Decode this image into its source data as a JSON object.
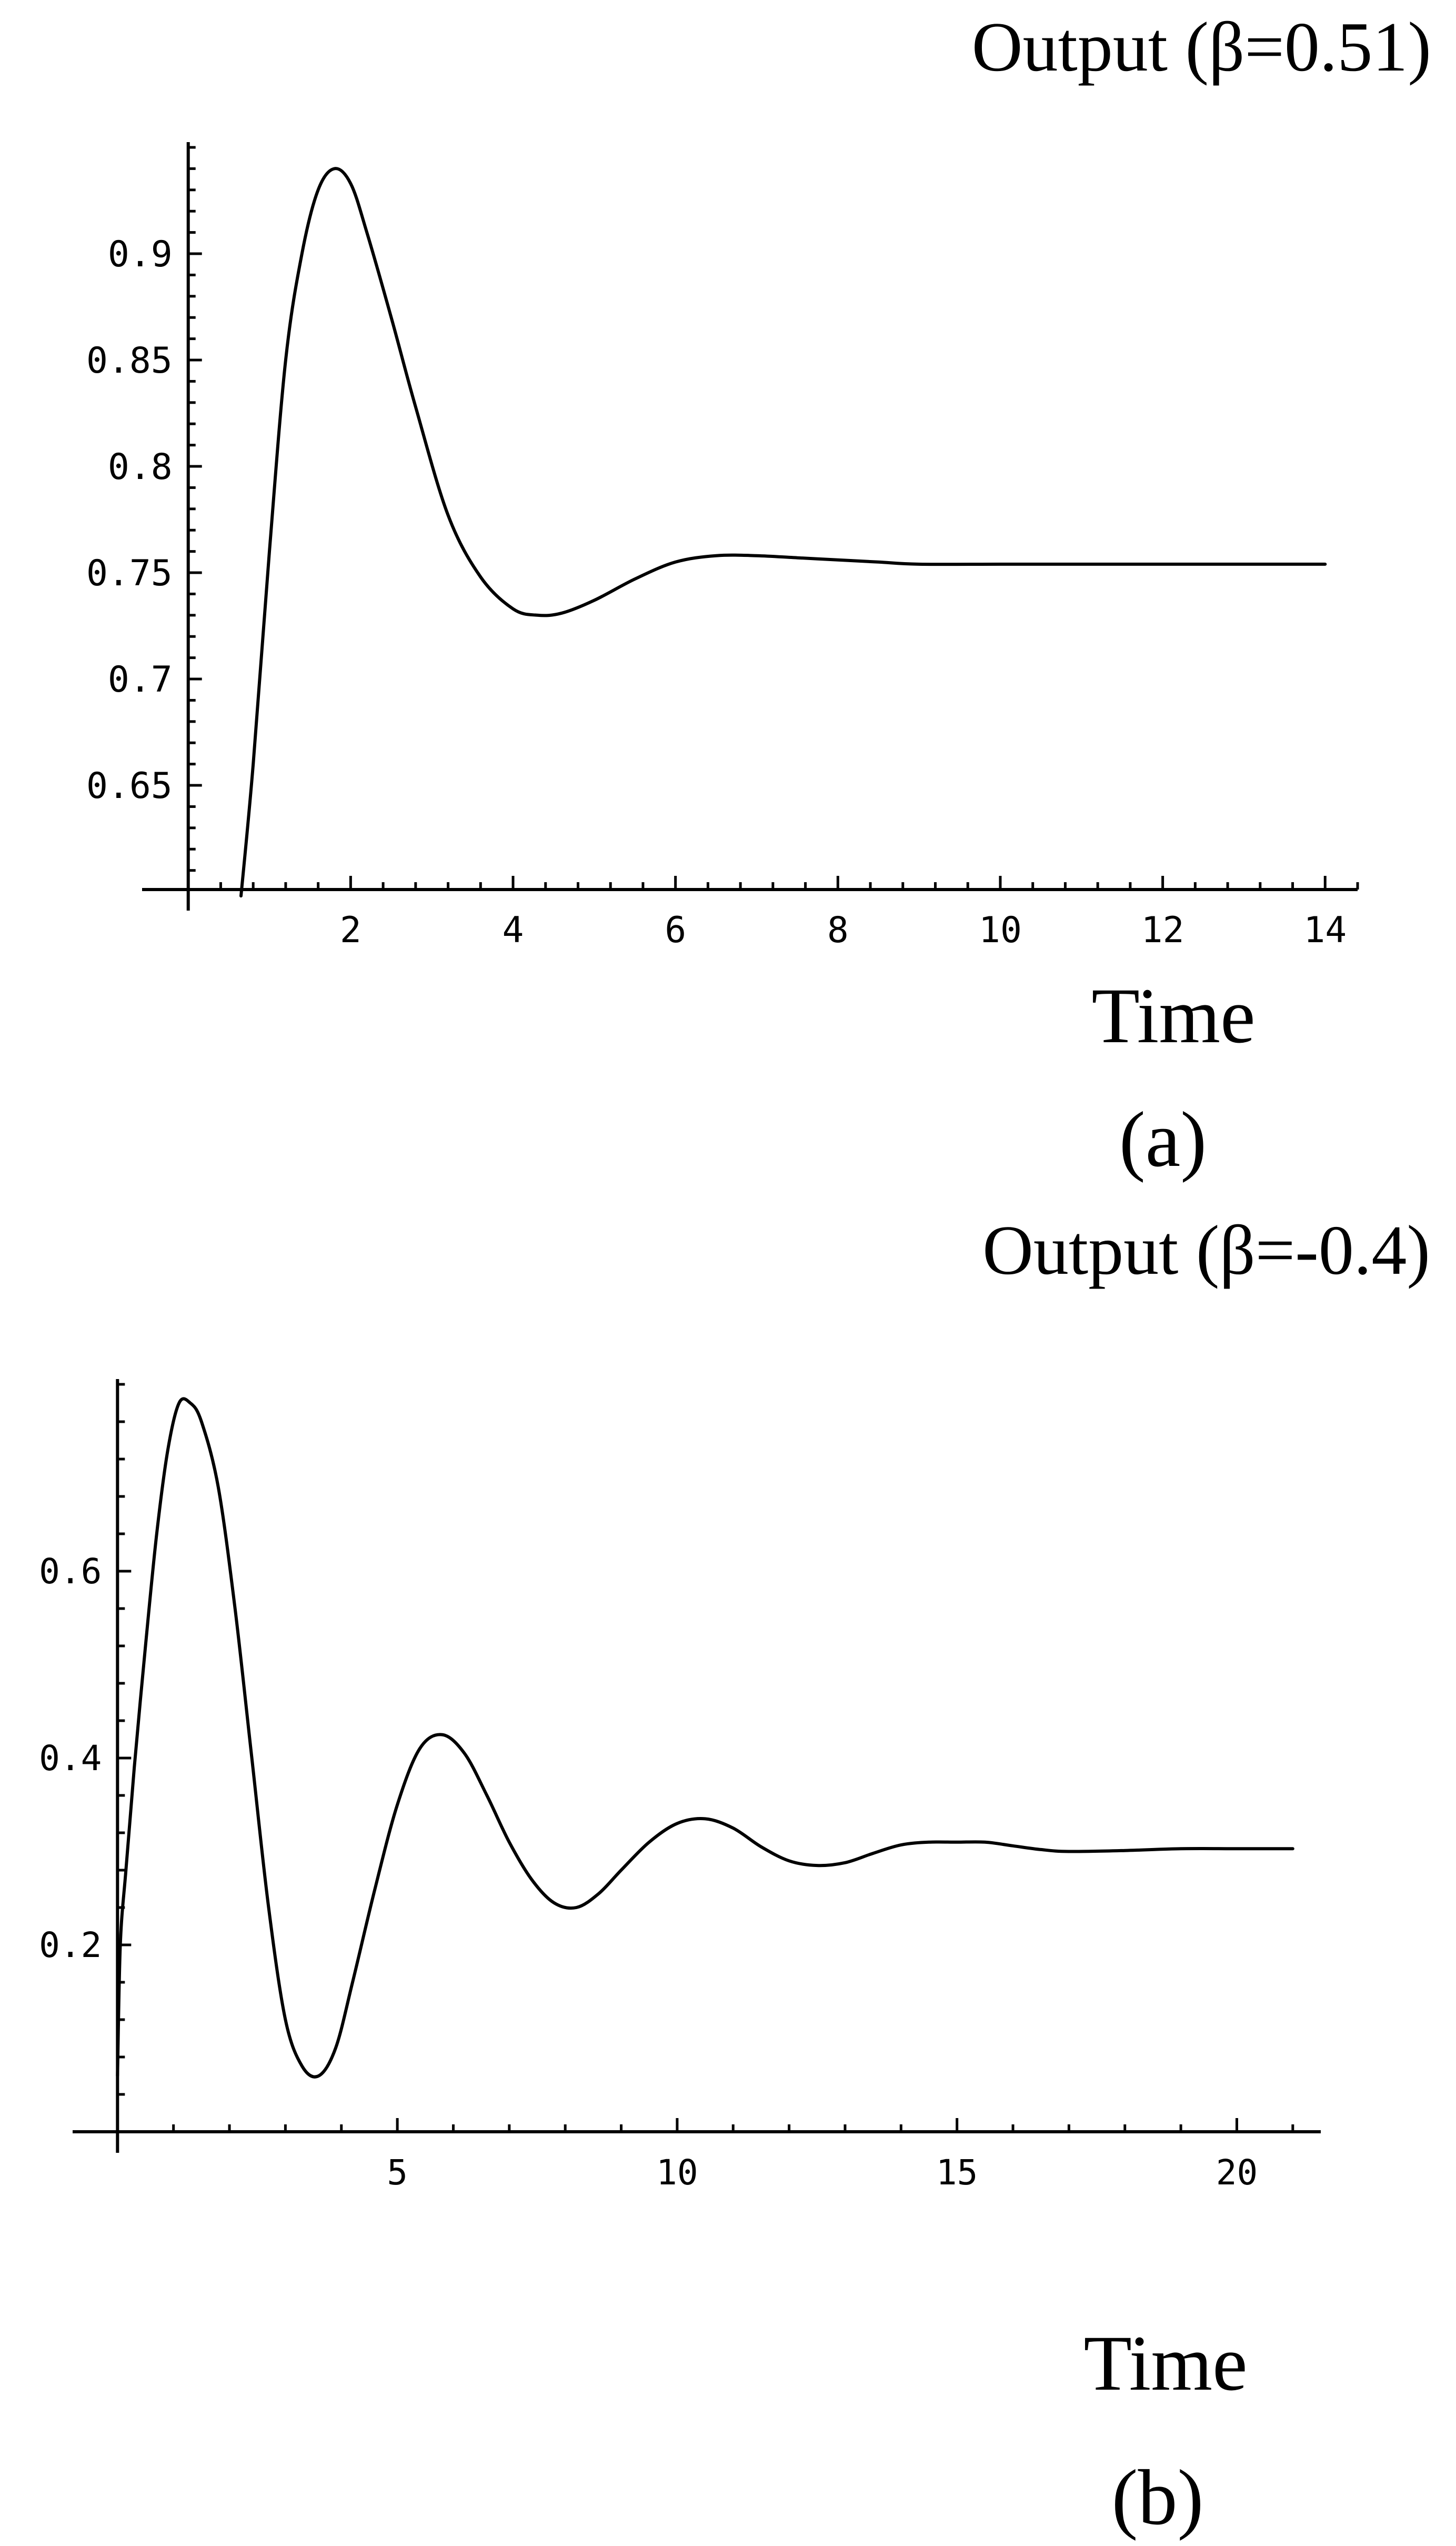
{
  "chart_data": [
    {
      "type": "line",
      "title": "Output (β=0.51)",
      "xlabel": "Time",
      "caption": "(a)",
      "xlim": [
        -0.05,
        14.4
      ],
      "ylim": [
        0.601,
        0.95
      ],
      "x_axis_crossing_y": 0.601,
      "x_ticks": [
        2,
        4,
        6,
        8,
        10,
        12,
        14
      ],
      "y_ticks": [
        0.65,
        0.7,
        0.75,
        0.8,
        0.85,
        0.9
      ],
      "y_tick_labels": [
        "0.65",
        "0.7",
        "0.75",
        "0.8",
        "0.85",
        "0.9"
      ],
      "series": [
        {
          "x": [
            0.65,
            0.8,
            1.0,
            1.2,
            1.4,
            1.6,
            1.8,
            2.0,
            2.2,
            2.5,
            2.8,
            3.2,
            3.6,
            4.0,
            4.3,
            4.6,
            5.0,
            5.5,
            6.0,
            6.5,
            7.0,
            7.5,
            8.0,
            8.5,
            9.0,
            10.0,
            11.0,
            12.0,
            13.0,
            14.0
          ],
          "values": [
            0.598,
            0.66,
            0.76,
            0.85,
            0.9,
            0.93,
            0.94,
            0.933,
            0.91,
            0.87,
            0.828,
            0.777,
            0.748,
            0.733,
            0.73,
            0.731,
            0.737,
            0.747,
            0.755,
            0.758,
            0.758,
            0.757,
            0.756,
            0.755,
            0.754,
            0.754,
            0.754,
            0.754,
            0.754,
            0.754
          ]
        }
      ]
    },
    {
      "type": "line",
      "title": "Output (β=-0.4)",
      "xlabel": "Time",
      "caption": "(b)",
      "xlim": [
        -0.05,
        21.5
      ],
      "ylim": [
        0.0,
        0.8
      ],
      "x_axis_crossing_y": 0.0,
      "x_ticks": [
        5,
        10,
        15,
        20
      ],
      "y_ticks": [
        0.2,
        0.4,
        0.6
      ],
      "y_tick_labels": [
        "0.2",
        "0.4",
        "0.6"
      ],
      "series": [
        {
          "x": [
            0.0,
            0.05,
            0.15,
            0.3,
            0.5,
            0.7,
            0.9,
            1.1,
            1.3,
            1.5,
            1.8,
            2.1,
            2.4,
            2.7,
            3.0,
            3.3,
            3.6,
            3.9,
            4.2,
            4.6,
            5.0,
            5.4,
            5.8,
            6.2,
            6.6,
            7.0,
            7.4,
            7.8,
            8.2,
            8.6,
            9.0,
            9.5,
            10.0,
            10.5,
            11.0,
            11.5,
            12.0,
            12.5,
            13.0,
            13.5,
            14.0,
            14.5,
            15.0,
            15.5,
            16.0,
            16.5,
            17.0,
            18.0,
            19.0,
            20.0,
            21.0
          ],
          "values": [
            0.06,
            0.2,
            0.28,
            0.39,
            0.52,
            0.64,
            0.73,
            0.78,
            0.78,
            0.76,
            0.69,
            0.56,
            0.4,
            0.24,
            0.12,
            0.07,
            0.06,
            0.09,
            0.16,
            0.26,
            0.35,
            0.41,
            0.425,
            0.405,
            0.36,
            0.31,
            0.27,
            0.245,
            0.24,
            0.255,
            0.28,
            0.31,
            0.33,
            0.335,
            0.325,
            0.305,
            0.29,
            0.285,
            0.288,
            0.298,
            0.307,
            0.31,
            0.31,
            0.31,
            0.306,
            0.302,
            0.3,
            0.301,
            0.303,
            0.303,
            0.303
          ]
        }
      ]
    }
  ]
}
